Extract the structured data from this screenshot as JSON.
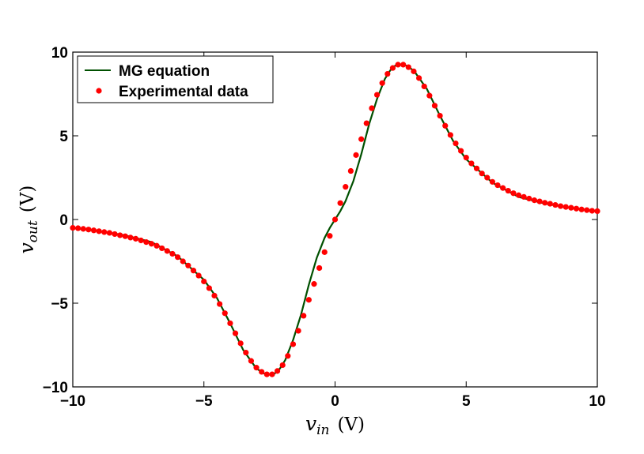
{
  "chart_data": {
    "type": "line",
    "xlabel": {
      "main": "v",
      "sub": "in",
      "unit": "(V)"
    },
    "ylabel": {
      "main": "v",
      "sub": "out",
      "unit": "(V)"
    },
    "xlim": [
      -10,
      10
    ],
    "ylim": [
      -10,
      10
    ],
    "xticks": [
      -10,
      -5,
      0,
      5,
      10
    ],
    "xtick_labels": [
      "−10",
      "−5",
      "0",
      "5",
      "10"
    ],
    "yticks": [
      -10,
      -5,
      0,
      5,
      10
    ],
    "ytick_labels": [
      "−10",
      "−5",
      "0",
      "5",
      "10"
    ],
    "grid": false,
    "legend_position": "top-left",
    "series": [
      {
        "name": "MG equation",
        "style": "line",
        "color": "#005000",
        "x": [
          -10,
          -9,
          -8,
          -7,
          -6,
          -5,
          -4.5,
          -4,
          -3.5,
          -3,
          -2.7,
          -2.5,
          -2.3,
          -2.1,
          -1.9,
          -1.6,
          -1.3,
          -1,
          -0.7,
          -0.4,
          -0.2,
          0,
          0.2,
          0.4,
          0.7,
          1,
          1.3,
          1.6,
          1.9,
          2.1,
          2.3,
          2.5,
          2.7,
          3,
          3.5,
          4,
          4.5,
          5,
          6,
          7,
          8,
          9,
          10
        ],
        "y": [
          -0.5,
          -0.7,
          -0.95,
          -1.35,
          -2.2,
          -3.6,
          -4.7,
          -6.2,
          -7.8,
          -8.9,
          -9.2,
          -9.25,
          -9.2,
          -8.9,
          -8.4,
          -7.2,
          -5.7,
          -3.9,
          -2.3,
          -1.1,
          -0.5,
          0,
          0.5,
          1.1,
          2.3,
          3.9,
          5.7,
          7.2,
          8.4,
          8.9,
          9.2,
          9.25,
          9.2,
          8.9,
          7.8,
          6.2,
          4.7,
          3.6,
          2.2,
          1.35,
          0.95,
          0.7,
          0.5
        ]
      },
      {
        "name": "Experimental data",
        "style": "markers",
        "color": "#ff0000",
        "x": [
          -10,
          -9.8,
          -9.6,
          -9.4,
          -9.2,
          -9,
          -8.8,
          -8.6,
          -8.4,
          -8.2,
          -8,
          -7.8,
          -7.6,
          -7.4,
          -7.2,
          -7,
          -6.8,
          -6.6,
          -6.4,
          -6.2,
          -6,
          -5.8,
          -5.6,
          -5.4,
          -5.2,
          -5,
          -4.8,
          -4.6,
          -4.4,
          -4.2,
          -4,
          -3.8,
          -3.6,
          -3.4,
          -3.2,
          -3,
          -2.8,
          -2.6,
          -2.4,
          -2.2,
          -2,
          -1.8,
          -1.6,
          -1.4,
          -1.2,
          -1,
          -0.8,
          -0.6,
          -0.4,
          -0.2,
          0,
          0.2,
          0.4,
          0.6,
          0.8,
          1,
          1.2,
          1.4,
          1.6,
          1.8,
          2,
          2.2,
          2.4,
          2.6,
          2.8,
          3,
          3.2,
          3.4,
          3.6,
          3.8,
          4,
          4.2,
          4.4,
          4.6,
          4.8,
          5,
          5.2,
          5.4,
          5.6,
          5.8,
          6,
          6.2,
          6.4,
          6.6,
          6.8,
          7,
          7.2,
          7.4,
          7.6,
          7.8,
          8,
          8.2,
          8.4,
          8.6,
          8.8,
          9,
          9.2,
          9.4,
          9.6,
          9.8,
          10
        ],
        "y": [
          -0.5,
          -0.52,
          -0.56,
          -0.6,
          -0.65,
          -0.7,
          -0.75,
          -0.8,
          -0.87,
          -0.94,
          -1.0,
          -1.08,
          -1.15,
          -1.25,
          -1.35,
          -1.45,
          -1.57,
          -1.72,
          -1.88,
          -2.05,
          -2.25,
          -2.5,
          -2.75,
          -3.05,
          -3.35,
          -3.7,
          -4.1,
          -4.55,
          -5.05,
          -5.6,
          -6.2,
          -6.8,
          -7.4,
          -7.95,
          -8.45,
          -8.85,
          -9.1,
          -9.25,
          -9.25,
          -9.05,
          -8.7,
          -8.15,
          -7.45,
          -6.65,
          -5.75,
          -4.8,
          -3.85,
          -2.9,
          -1.95,
          -0.98,
          0,
          0.98,
          1.95,
          2.9,
          3.85,
          4.8,
          5.75,
          6.65,
          7.45,
          8.15,
          8.7,
          9.05,
          9.25,
          9.25,
          9.1,
          8.85,
          8.45,
          7.95,
          7.4,
          6.8,
          6.2,
          5.6,
          5.05,
          4.55,
          4.1,
          3.7,
          3.35,
          3.05,
          2.75,
          2.5,
          2.25,
          2.05,
          1.88,
          1.72,
          1.57,
          1.45,
          1.35,
          1.25,
          1.15,
          1.08,
          1.0,
          0.94,
          0.87,
          0.8,
          0.75,
          0.7,
          0.65,
          0.6,
          0.56,
          0.52,
          0.5
        ]
      }
    ]
  }
}
